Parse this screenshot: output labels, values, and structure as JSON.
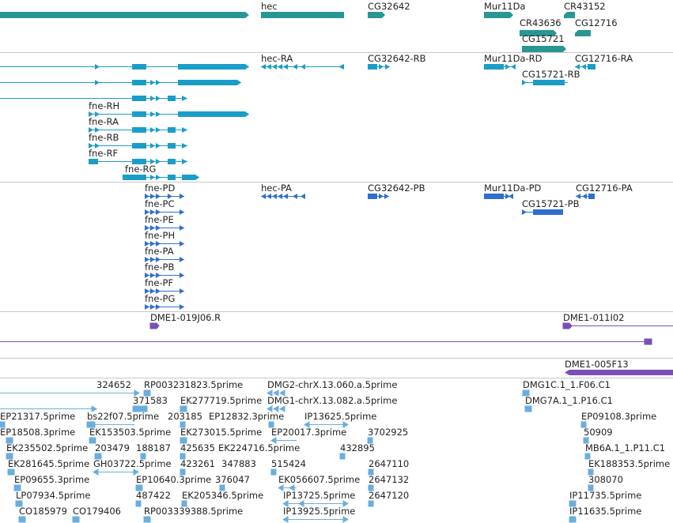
{
  "colors": {
    "gene": "#2a9694",
    "transcript_flybase": "#1b9dc9",
    "transcript_refseq": "#2f6fce",
    "clone": "#7a4fb6",
    "est": "#69aedc",
    "separator": "#c6c6c6",
    "label": "#222222"
  },
  "tracks": [
    {
      "id": "genes",
      "kind": "gene",
      "labels": [
        "hec",
        "CG32642",
        "Mur11Da",
        "CR43152",
        "CR43636",
        "CG12716",
        "CG15721"
      ]
    },
    {
      "id": "transcripts-flybase",
      "kind": "transcript_flybase",
      "labels": [
        "hec-RA",
        "CG32642-RB",
        "Mur11Da-RD",
        "CG12716-RA",
        "CG15721-RB",
        "fne-RH",
        "fne-RA",
        "fne-RB",
        "fne-RF",
        "fne-RG"
      ]
    },
    {
      "id": "transcripts-refseq",
      "kind": "transcript_refseq",
      "labels": [
        "fne-PD",
        "hec-PA",
        "CG32642-PB",
        "Mur11Da-PD",
        "CG12716-PA",
        "CG15721-PB",
        "fne-PC",
        "fne-PE",
        "fne-PH",
        "fne-PA",
        "fne-PB",
        "fne-PF",
        "fne-PG"
      ]
    },
    {
      "id": "bac-clones",
      "kind": "clone",
      "labels": [
        "DME1-019J06.R",
        "DME1-011I02"
      ]
    },
    {
      "id": "bac-clones-2",
      "kind": "clone",
      "labels": [
        "DME1-005F13"
      ]
    },
    {
      "id": "ests",
      "kind": "est",
      "labels": [
        "324652",
        "RP003231823.5prime",
        "DMG2-chrX.13.060.a.5prime",
        "DMG1C.1_1.F06.C1",
        "371583",
        "EK277719.5prime",
        "DMG1-chrX.13.082.a.5prime",
        "DMG7A.1_1.P16.C1",
        "EP21317.5prime",
        "bs22f07.5prime",
        "203185",
        "EP12832.3prime",
        "IP13625.5prime",
        "EP09108.3prime",
        "EP18508.3prime",
        "EK153503.5prime",
        "EK273015.5prime",
        "EP20017.3prime",
        "3702925",
        "50909",
        "EK235502.5prime",
        "203479",
        "188187",
        "425635",
        "EK224716.5prime",
        "432895",
        "MB6A.1_1.P11.C1",
        "EK281645.5prime",
        "GH03722.5prime",
        "423261",
        "347883",
        "515424",
        "2647110",
        "EK188353.5prime",
        "EP09655.3prime",
        "EP10640.3prime",
        "376047",
        "EK056607.5prime",
        "2647132",
        "308070",
        "LP07934.5prime",
        "487422",
        "EK205346.5prime",
        "IP13725.5prime",
        "2647120",
        "IP11735.5prime",
        "CO185979",
        "CO179406",
        "RP003339388.5prime",
        "IP13925.5prime",
        "IP11635.5prime"
      ]
    }
  ]
}
